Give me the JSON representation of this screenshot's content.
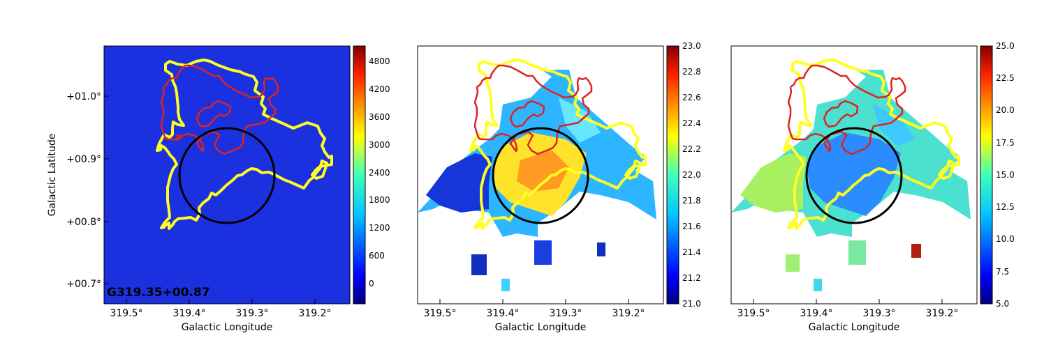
{
  "chart_data": [
    {
      "type": "heatmap",
      "panel": "left",
      "label": "G319.35+00.87",
      "xlabel": "Galactic Longitude",
      "ylabel": "Galactic Latitude",
      "x_ticks": [
        "319.5°",
        "319.4°",
        "319.3°",
        "319.2°"
      ],
      "y_ticks": [
        "+01.0°",
        "+00.9°",
        "+00.8°",
        "+00.7°"
      ],
      "xlim": [
        319.55,
        319.14
      ],
      "ylim": [
        0.67,
        1.09
      ],
      "colorbar": {
        "ticks": [
          "4800",
          "4200",
          "3600",
          "3000",
          "2400",
          "1800",
          "1200",
          "600",
          "0"
        ],
        "range": [
          -400,
          5100
        ]
      },
      "background_value": 250
    },
    {
      "type": "heatmap",
      "panel": "middle",
      "xlabel": "Galactic Longitude",
      "x_ticks": [
        "319.5°",
        "319.4°",
        "319.3°",
        "319.2°"
      ],
      "colorbar": {
        "ticks": [
          "23.0",
          "22.8",
          "22.6",
          "22.4",
          "22.2",
          "22.0",
          "21.8",
          "21.6",
          "21.4",
          "21.2",
          "21.0"
        ],
        "range": [
          21.0,
          23.0
        ]
      }
    },
    {
      "type": "heatmap",
      "panel": "right",
      "xlabel": "Galactic Longitude",
      "x_ticks": [
        "319.5°",
        "319.4°",
        "319.3°",
        "319.2°"
      ],
      "colorbar": {
        "ticks": [
          "25.0",
          "22.5",
          "20.0",
          "17.5",
          "15.0",
          "12.5",
          "10.0",
          "7.5",
          "5.0"
        ],
        "range": [
          5.0,
          25.0
        ]
      }
    }
  ],
  "colors": {
    "yellow_contour": "#ffff22",
    "red_contour": "#dd2222",
    "circle": "#000000",
    "low_fill": "#1a33dd"
  }
}
